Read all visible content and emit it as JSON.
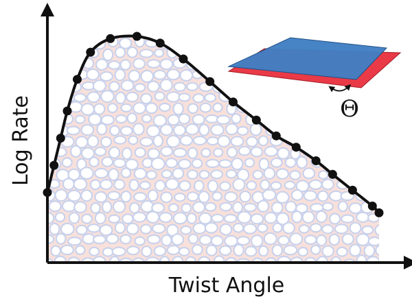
{
  "chart_data": {
    "type": "line",
    "title": "",
    "xlabel": "Twist Angle",
    "ylabel": "Log Rate",
    "x_ticks_shown": false,
    "y_ticks_shown": false,
    "grid": false,
    "legend": "none",
    "fill_under_curve": true,
    "marker": "filled-circle",
    "line_color": "#111111",
    "fill_pattern_colors": [
      "#c9d2ec",
      "#f2c6be"
    ],
    "x": [
      0.0,
      0.02,
      0.04,
      0.06,
      0.09,
      0.13,
      0.19,
      0.27,
      0.34,
      0.41,
      0.49,
      0.56,
      0.63,
      0.69,
      0.75,
      0.81,
      0.86,
      0.92,
      0.98,
      1.0
    ],
    "values": [
      0.31,
      0.43,
      0.55,
      0.67,
      0.81,
      0.93,
      0.99,
      1.0,
      0.97,
      0.9,
      0.8,
      0.71,
      0.63,
      0.56,
      0.51,
      0.45,
      0.39,
      0.32,
      0.25,
      0.22
    ],
    "inset": {
      "label": "Θ",
      "top_sheet_color": "#3f7fc4",
      "bottom_sheet_color": "#ea3a47"
    }
  }
}
